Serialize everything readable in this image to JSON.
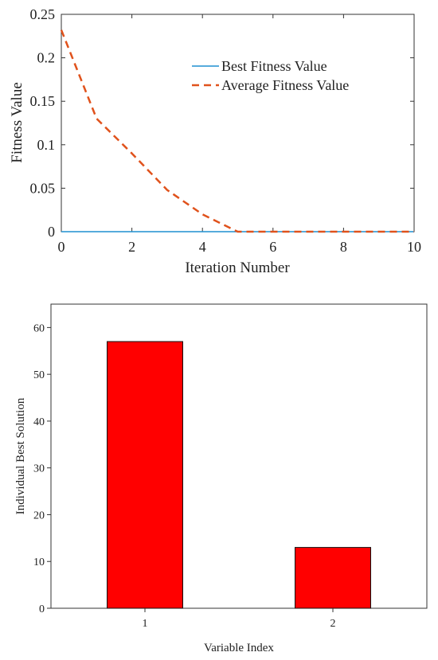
{
  "chart_data": [
    {
      "type": "line",
      "xlabel": "Iteration Number",
      "ylabel": "Fitness Value",
      "xlim": [
        0,
        10
      ],
      "ylim": [
        0,
        0.25
      ],
      "xticks": [
        0,
        2,
        4,
        6,
        8,
        10
      ],
      "yticks": [
        0,
        0.05,
        0.1,
        0.15,
        0.2,
        0.25
      ],
      "ytick_labels": [
        "0",
        "0.05",
        "0.1",
        "0.15",
        "0.2",
        "0.25"
      ],
      "legend_position": "top-right",
      "grid": false,
      "x": [
        0,
        1,
        2,
        3,
        4,
        5,
        6,
        7,
        8,
        9,
        10
      ],
      "series": [
        {
          "name": "Best Fitness Value",
          "style": "solid",
          "color": "#1f8fd0",
          "values": [
            0,
            0,
            0,
            0,
            0,
            0,
            0,
            0,
            0,
            0,
            0
          ]
        },
        {
          "name": "Average Fitness Value",
          "style": "dashed",
          "color": "#e0521c",
          "values": [
            0.232,
            0.13,
            0.09,
            0.048,
            0.02,
            0,
            0,
            0,
            0,
            0,
            0
          ]
        }
      ]
    },
    {
      "type": "bar",
      "xlabel": "Variable Index",
      "ylabel": "Individual Best Solution",
      "categories": [
        "1",
        "2"
      ],
      "values": [
        57,
        13
      ],
      "ylim": [
        0,
        65
      ],
      "yticks": [
        0,
        10,
        20,
        30,
        40,
        50,
        60
      ],
      "bar_color": "#ff0000",
      "grid": false
    }
  ]
}
